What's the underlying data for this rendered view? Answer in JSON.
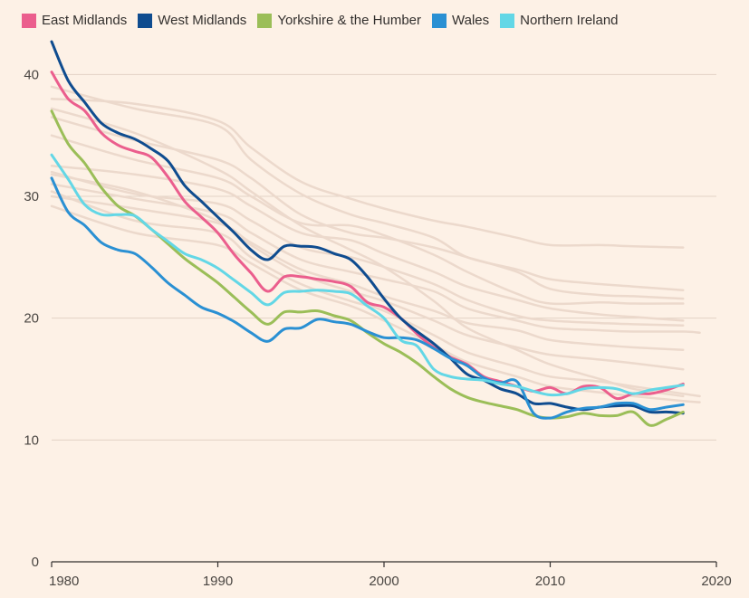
{
  "chart_data": {
    "type": "line",
    "title": "",
    "xlabel": "",
    "ylabel": "",
    "xlim": [
      1980,
      2020
    ],
    "ylim": [
      0,
      45
    ],
    "xticks": [
      1980,
      1990,
      2000,
      2010,
      2020
    ],
    "yticks": [
      0,
      10,
      20,
      30,
      40
    ],
    "grid": "horizontal",
    "legend_position": "top-left",
    "series": [
      {
        "name": "East Midlands",
        "color": "#eb5e8d",
        "x": [
          1980,
          1981,
          1982,
          1983,
          1984,
          1985,
          1986,
          1987,
          1988,
          1989,
          1990,
          1991,
          1992,
          1993,
          1994,
          1995,
          1996,
          1997,
          1998,
          1999,
          2000,
          2001,
          2002,
          2003,
          2004,
          2005,
          2006,
          2007,
          2008,
          2009,
          2010,
          2011,
          2012,
          2013,
          2014,
          2015,
          2016,
          2017,
          2018
        ],
        "values": [
          40.2,
          38.0,
          37.0,
          35.2,
          34.2,
          33.7,
          33.2,
          31.6,
          29.6,
          28.3,
          27.0,
          25.2,
          23.7,
          22.2,
          23.4,
          23.4,
          23.2,
          23.0,
          22.6,
          21.3,
          20.9,
          20.0,
          18.7,
          17.6,
          16.8,
          16.2,
          15.2,
          14.8,
          14.4,
          14.0,
          14.3,
          13.8,
          14.4,
          14.3,
          13.4,
          13.8,
          13.8,
          14.1,
          14.6
        ]
      },
      {
        "name": "West Midlands",
        "color": "#0f4c8f",
        "x": [
          1980,
          1981,
          1982,
          1983,
          1984,
          1985,
          1986,
          1987,
          1988,
          1989,
          1990,
          1991,
          1992,
          1993,
          1994,
          1995,
          1996,
          1997,
          1998,
          1999,
          2000,
          2001,
          2002,
          2003,
          2004,
          2005,
          2006,
          2007,
          2008,
          2009,
          2010,
          2011,
          2012,
          2013,
          2014,
          2015,
          2016,
          2017,
          2018
        ],
        "values": [
          42.7,
          39.5,
          37.7,
          36.0,
          35.2,
          34.7,
          33.9,
          32.9,
          30.9,
          29.6,
          28.3,
          27.0,
          25.6,
          24.8,
          25.9,
          25.9,
          25.8,
          25.3,
          24.8,
          23.4,
          21.6,
          20.0,
          18.9,
          17.9,
          16.7,
          15.4,
          14.9,
          14.2,
          13.8,
          13.0,
          13.0,
          12.7,
          12.5,
          12.7,
          12.8,
          12.8,
          12.3,
          12.3,
          12.2
        ]
      },
      {
        "name": "Yorkshire & the Humber",
        "color": "#9bbe58",
        "x": [
          1980,
          1981,
          1982,
          1983,
          1984,
          1985,
          1986,
          1987,
          1988,
          1989,
          1990,
          1991,
          1992,
          1993,
          1994,
          1995,
          1996,
          1997,
          1998,
          1999,
          2000,
          2001,
          2002,
          2003,
          2004,
          2005,
          2006,
          2007,
          2008,
          2009,
          2010,
          2011,
          2012,
          2013,
          2014,
          2015,
          2016,
          2017,
          2018
        ],
        "values": [
          37.0,
          34.3,
          32.7,
          30.7,
          29.2,
          28.4,
          27.3,
          26.1,
          24.9,
          23.9,
          22.9,
          21.7,
          20.5,
          19.5,
          20.5,
          20.5,
          20.6,
          20.2,
          19.8,
          18.8,
          17.9,
          17.2,
          16.3,
          15.2,
          14.2,
          13.5,
          13.1,
          12.8,
          12.5,
          12.0,
          11.8,
          11.9,
          12.2,
          12.0,
          12.0,
          12.3,
          11.2,
          11.7,
          12.3
        ]
      },
      {
        "name": "Wales",
        "color": "#2a90d3",
        "x": [
          1980,
          1981,
          1982,
          1983,
          1984,
          1985,
          1986,
          1987,
          1988,
          1989,
          1990,
          1991,
          1992,
          1993,
          1994,
          1995,
          1996,
          1997,
          1998,
          1999,
          2000,
          2001,
          2002,
          2003,
          2004,
          2005,
          2006,
          2007,
          2008,
          2009,
          2010,
          2011,
          2012,
          2013,
          2014,
          2015,
          2016,
          2017,
          2018
        ],
        "values": [
          31.5,
          28.7,
          27.6,
          26.2,
          25.6,
          25.3,
          24.2,
          22.9,
          21.9,
          20.9,
          20.4,
          19.7,
          18.8,
          18.1,
          19.1,
          19.2,
          19.9,
          19.7,
          19.5,
          18.9,
          18.4,
          18.4,
          18.2,
          17.5,
          16.7,
          16.1,
          15.1,
          14.7,
          14.8,
          12.2,
          11.8,
          12.3,
          12.6,
          12.7,
          13.0,
          13.0,
          12.5,
          12.7,
          12.9
        ]
      },
      {
        "name": "Northern Ireland",
        "color": "#63d7e6",
        "x": [
          1980,
          1981,
          1982,
          1983,
          1984,
          1985,
          1986,
          1987,
          1988,
          1989,
          1990,
          1991,
          1992,
          1993,
          1994,
          1995,
          1996,
          1997,
          1998,
          1999,
          2000,
          2001,
          2002,
          2003,
          2004,
          2005,
          2006,
          2007,
          2008,
          2009,
          2010,
          2011,
          2012,
          2013,
          2014,
          2015,
          2016,
          2017,
          2018
        ],
        "values": [
          33.4,
          31.4,
          29.3,
          28.5,
          28.5,
          28.4,
          27.3,
          26.3,
          25.3,
          24.8,
          24.1,
          23.1,
          22.1,
          21.1,
          22.1,
          22.2,
          22.3,
          22.2,
          22.0,
          21.0,
          20.0,
          18.2,
          17.7,
          15.8,
          15.2,
          15.0,
          14.9,
          14.6,
          14.4,
          14.0,
          13.7,
          13.8,
          14.2,
          14.3,
          14.2,
          13.8,
          14.1,
          14.3,
          14.5
        ]
      }
    ],
    "background_series": [
      {
        "color": "#ecd9cc",
        "x": [
          1980,
          1985,
          1990,
          1992,
          1995,
          1998,
          2000,
          2003,
          2005,
          2008,
          2010,
          2013,
          2015,
          2018
        ],
        "values": [
          39.0,
          37.2,
          35.8,
          33.0,
          30.2,
          28.5,
          27.8,
          26.6,
          25.0,
          24.0,
          23.2,
          22.8,
          22.6,
          22.3
        ]
      },
      {
        "color": "#ecd9cc",
        "x": [
          1980,
          1985,
          1990,
          1992,
          1995,
          1998,
          2000,
          2003,
          2005,
          2008,
          2010,
          2013,
          2015,
          2018
        ],
        "values": [
          38.0,
          37.6,
          36.2,
          34.0,
          31.2,
          29.8,
          29.0,
          28.0,
          27.5,
          26.6,
          26.0,
          26.0,
          25.9,
          25.8
        ]
      },
      {
        "color": "#ecd9cc",
        "x": [
          1980,
          1985,
          1990,
          1992,
          1995,
          1998,
          2000,
          2003,
          2005,
          2008,
          2010,
          2013,
          2015,
          2018
        ],
        "values": [
          36.5,
          34.6,
          33.0,
          31.5,
          28.5,
          27.0,
          26.6,
          25.8,
          25.0,
          23.8,
          22.4,
          21.9,
          21.8,
          21.6
        ]
      },
      {
        "color": "#ecd9cc",
        "x": [
          1980,
          1985,
          1990,
          1992,
          1995,
          1998,
          2000,
          2003,
          2005,
          2008,
          2010,
          2013,
          2015,
          2018
        ],
        "values": [
          35.0,
          33.0,
          31.5,
          30.0,
          27.8,
          27.6,
          26.8,
          25.2,
          23.8,
          22.0,
          21.2,
          21.3,
          21.2,
          21.2
        ]
      },
      {
        "color": "#ecd9cc",
        "x": [
          1980,
          1985,
          1990,
          1992,
          1995,
          1998,
          2000,
          2003,
          2005,
          2008,
          2010,
          2013,
          2015,
          2018
        ],
        "values": [
          32.5,
          31.8,
          30.6,
          29.2,
          27.0,
          26.4,
          25.3,
          23.8,
          22.6,
          21.5,
          20.8,
          20.3,
          20.1,
          19.8
        ]
      },
      {
        "color": "#ecd9cc",
        "x": [
          1980,
          1985,
          1990,
          1992,
          1995,
          1998,
          2000,
          2003,
          2005,
          2008,
          2010,
          2013,
          2015,
          2018
        ],
        "values": [
          32.0,
          30.2,
          29.4,
          28.0,
          25.8,
          25.0,
          24.2,
          22.8,
          21.5,
          20.2,
          19.8,
          19.6,
          19.5,
          19.4
        ]
      },
      {
        "color": "#ecd9cc",
        "x": [
          1980,
          1985,
          1990,
          1992,
          1995,
          1998,
          2000,
          2003,
          2005,
          2008,
          2010,
          2013,
          2015,
          2018,
          2019
        ],
        "values": [
          31.0,
          29.8,
          28.6,
          27.0,
          24.8,
          23.8,
          23.2,
          22.2,
          20.8,
          19.8,
          19.2,
          19.0,
          18.9,
          18.9,
          18.8
        ]
      },
      {
        "color": "#ecd9cc",
        "x": [
          1980,
          1985,
          1990,
          1992,
          1995,
          1998,
          2000,
          2003,
          2005,
          2008,
          2010,
          2013,
          2015,
          2018
        ],
        "values": [
          30.0,
          29.0,
          27.8,
          26.2,
          24.0,
          22.8,
          21.8,
          20.6,
          19.6,
          19.0,
          18.2,
          17.8,
          17.6,
          17.4
        ]
      },
      {
        "color": "#ecd9cc",
        "x": [
          1980,
          1985,
          1990,
          1992,
          1995,
          1998,
          2000,
          2003,
          2005,
          2008,
          2010,
          2013,
          2015,
          2018
        ],
        "values": [
          31.8,
          30.4,
          28.0,
          26.0,
          23.6,
          22.2,
          21.4,
          19.8,
          18.6,
          17.6,
          17.0,
          16.6,
          16.3,
          15.8
        ]
      },
      {
        "color": "#ecd9cc",
        "x": [
          1980,
          1985,
          1990,
          1992,
          1995,
          1998,
          2000,
          2003,
          2005,
          2008,
          2010,
          2013,
          2015,
          2018,
          2019
        ],
        "values": [
          30.4,
          28.0,
          27.0,
          25.0,
          22.8,
          21.4,
          20.6,
          18.6,
          17.2,
          16.0,
          15.2,
          14.8,
          14.4,
          13.8,
          13.6
        ]
      },
      {
        "color": "#ecd9cc",
        "x": [
          1980,
          1985,
          1990,
          1992,
          1995,
          1998,
          2000,
          2003,
          2005,
          2008,
          2010,
          2013,
          2015,
          2018,
          2019
        ],
        "values": [
          29.2,
          27.0,
          26.0,
          24.5,
          22.3,
          21.0,
          19.8,
          17.8,
          16.4,
          15.2,
          14.4,
          13.9,
          13.6,
          13.2,
          13.1
        ]
      },
      {
        "color": "#ecd9cc",
        "x": [
          1980,
          1985,
          1990,
          1992,
          1995,
          1998,
          2000,
          2003,
          2005,
          2008,
          2010,
          2013,
          2015,
          2018
        ],
        "values": [
          37.2,
          35.2,
          32.2,
          30.4,
          27.6,
          25.6,
          24.2,
          21.4,
          19.2,
          17.4,
          16.2,
          15.0,
          14.2,
          13.6
        ]
      }
    ]
  }
}
